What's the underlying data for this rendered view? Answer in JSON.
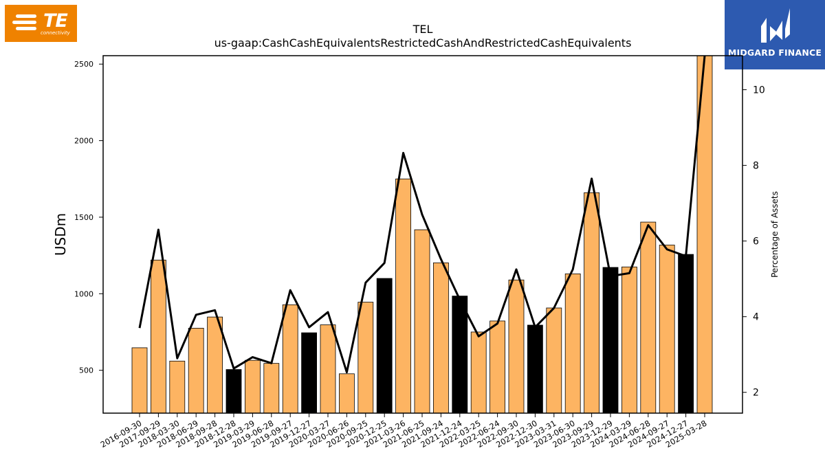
{
  "logos": {
    "left_word": "TE",
    "left_sub": "connectivity",
    "right_name": "MIDGARD FINANCE",
    "left_color": "#ef8200",
    "right_color": "#2d5ab0"
  },
  "chart_data": {
    "type": "bar",
    "title": "TEL",
    "subtitle": "us-gaap:CashCashEquivalentsRestrictedCashAndRestrictedCashEquivalents",
    "ylabel": "USDm",
    "y2label": "Percentage of Assets",
    "ylim": [
      220,
      2555
    ],
    "y2lim": [
      1.45,
      10.9
    ],
    "yticks": [
      500,
      1000,
      1500,
      2000,
      2500
    ],
    "y2ticks": [
      2,
      4,
      6,
      8,
      10
    ],
    "grid": false,
    "colors": {
      "bar_default": "#fdb462",
      "bar_highlight": "#000000",
      "line": "#000000"
    },
    "categories": [
      "2016-09-30",
      "2017-09-29",
      "2018-03-30",
      "2018-06-29",
      "2018-09-28",
      "2018-12-28",
      "2019-03-29",
      "2019-06-28",
      "2019-09-27",
      "2019-12-27",
      "2020-03-27",
      "2020-06-26",
      "2020-09-25",
      "2020-12-25",
      "2021-03-26",
      "2021-06-25",
      "2021-09-24",
      "2021-12-24",
      "2022-03-25",
      "2022-06-24",
      "2022-09-30",
      "2022-12-30",
      "2023-03-31",
      "2023-06-30",
      "2023-09-29",
      "2023-12-29",
      "2024-03-29",
      "2024-06-28",
      "2024-09-27",
      "2024-12-27",
      "2025-03-28"
    ],
    "series": [
      {
        "kind": "bar",
        "axis": "left",
        "values": [
          647,
          1220,
          560,
          775,
          848,
          505,
          565,
          545,
          928,
          745,
          797,
          477,
          945,
          1100,
          1750,
          1418,
          1202,
          985,
          750,
          822,
          1090,
          795,
          907,
          1130,
          1660,
          1172,
          1175,
          1468,
          1318,
          1257,
          2555
        ],
        "highlight": [
          false,
          false,
          false,
          false,
          false,
          true,
          false,
          false,
          false,
          true,
          false,
          false,
          false,
          true,
          false,
          false,
          false,
          true,
          false,
          false,
          false,
          true,
          false,
          false,
          false,
          true,
          false,
          false,
          false,
          true,
          false
        ]
      },
      {
        "kind": "line",
        "axis": "right",
        "values": [
          3.7,
          6.3,
          2.9,
          4.05,
          4.17,
          2.63,
          2.93,
          2.77,
          4.7,
          3.72,
          4.12,
          2.53,
          4.9,
          5.42,
          8.33,
          6.7,
          5.52,
          4.45,
          3.48,
          3.82,
          5.25,
          3.72,
          4.23,
          5.25,
          7.65,
          5.07,
          5.15,
          6.42,
          5.78,
          5.6,
          10.9
        ]
      }
    ]
  }
}
